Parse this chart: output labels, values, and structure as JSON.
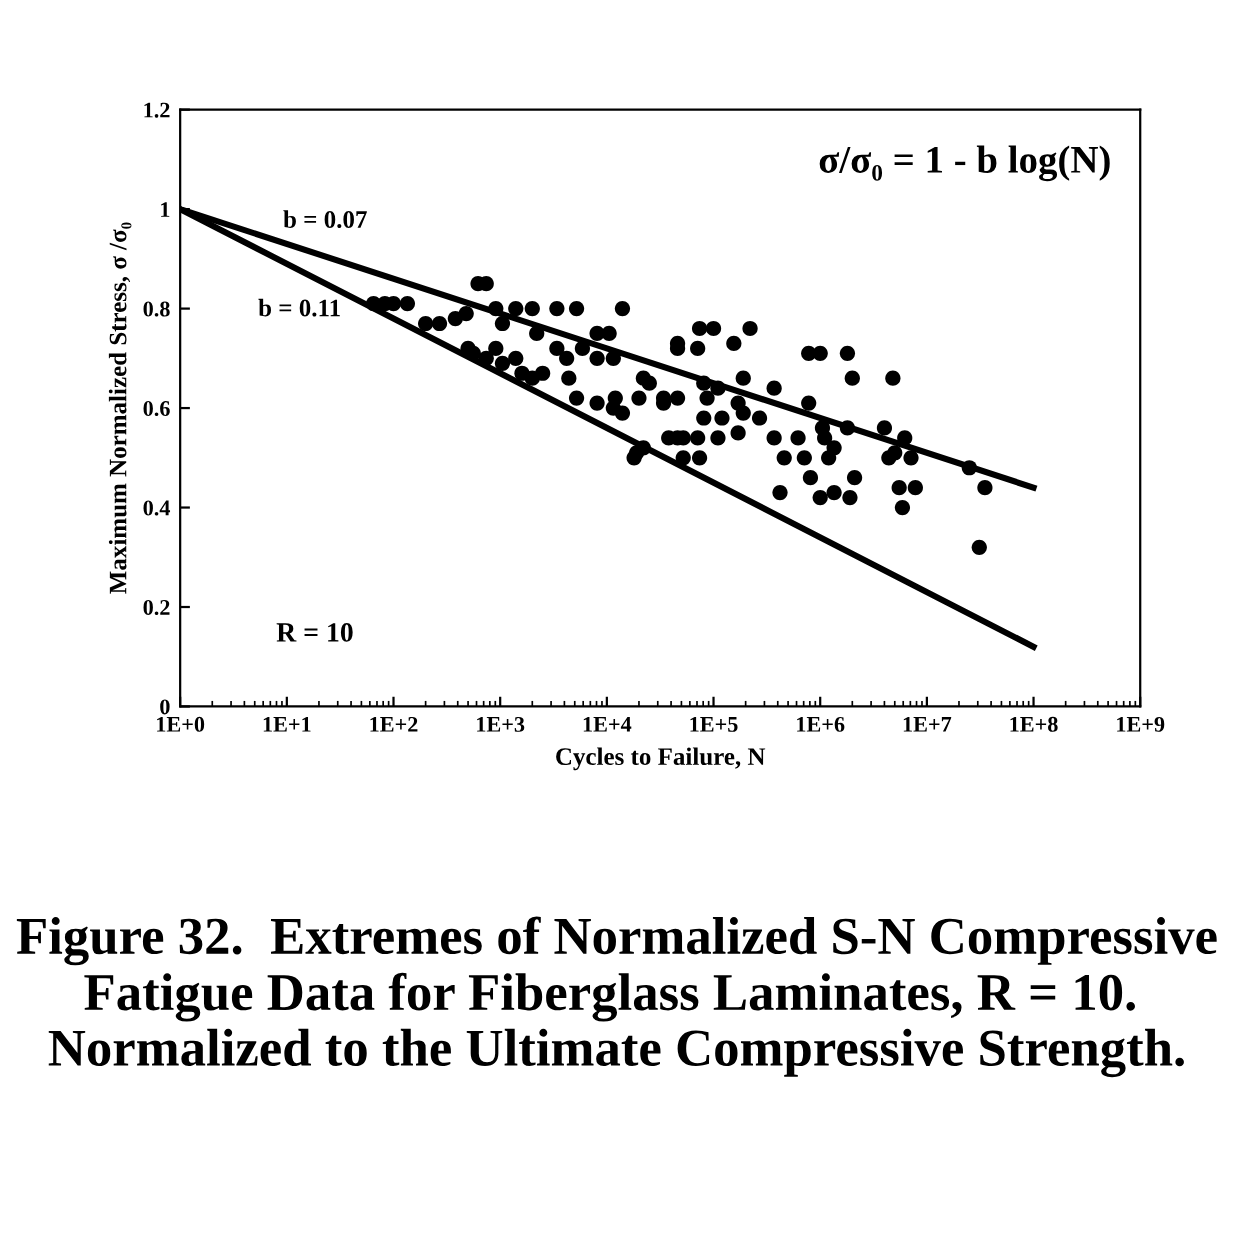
{
  "chart_data": {
    "type": "scatter",
    "xlabel": "Cycles to Failure, N",
    "ylabel": "Maximum Normalized Stress, σ /σ₀",
    "log": "x",
    "xlim": [
      1,
      1000000000
    ],
    "xticks": [
      {
        "value": 1,
        "label": "1E+0"
      },
      {
        "value": 10,
        "label": "1E+1"
      },
      {
        "value": 100,
        "label": "1E+2"
      },
      {
        "value": 1000,
        "label": "1E+3"
      },
      {
        "value": 10000,
        "label": "1E+4"
      },
      {
        "value": 100000,
        "label": "1E+5"
      },
      {
        "value": 1000000,
        "label": "1E+6"
      },
      {
        "value": 10000000,
        "label": "1E+7"
      },
      {
        "value": 100000000,
        "label": "1E+8"
      },
      {
        "value": 1000000000,
        "label": "1E+9"
      }
    ],
    "ylim": [
      0,
      1.2
    ],
    "yticks": [
      0,
      0.2,
      0.4,
      0.6,
      0.8,
      1,
      1.2
    ],
    "grid": false,
    "legend": false,
    "series": [
      {
        "color": "#000000",
        "marker": "circle",
        "x": [
          65,
          83,
          100,
          135,
          200,
          270,
          380,
          480,
          620,
          740,
          910,
          1050,
          1400,
          2000,
          3400,
          5200,
          14000,
          500,
          560,
          740,
          910,
          1050,
          1400,
          1600,
          2000,
          2500,
          2200,
          3400,
          4200,
          4400,
          5900,
          8100,
          8100,
          11500,
          10500,
          5200,
          8100,
          11500,
          14000,
          20000,
          25000,
          34000,
          46000,
          46000,
          18000,
          22000,
          38000,
          52000,
          74000,
          100000,
          220000,
          46000,
          155000,
          71000,
          780000,
          1000000,
          1800000,
          2000000,
          4800000,
          22000,
          81000,
          110000,
          190000,
          87000,
          170000,
          370000,
          780000,
          12000,
          34000,
          81000,
          120000,
          190000,
          270000,
          46000,
          71000,
          110000,
          170000,
          370000,
          620000,
          1100000,
          1350000,
          460000,
          710000,
          1200000,
          1800000,
          4000000,
          6200000,
          4400000,
          5000000,
          7100000,
          19000,
          52000,
          74000,
          420000,
          810000,
          1000000,
          1350000,
          1900000,
          2100000,
          5500000,
          7800000,
          5900000,
          25000000,
          35000000,
          31000000,
          1050000
        ],
        "values": [
          0.81,
          0.81,
          0.81,
          0.81,
          0.77,
          0.77,
          0.78,
          0.79,
          0.85,
          0.85,
          0.8,
          0.77,
          0.8,
          0.8,
          0.8,
          0.8,
          0.8,
          0.72,
          0.71,
          0.7,
          0.72,
          0.69,
          0.7,
          0.67,
          0.66,
          0.67,
          0.75,
          0.72,
          0.7,
          0.66,
          0.72,
          0.75,
          0.7,
          0.7,
          0.75,
          0.62,
          0.61,
          0.6,
          0.59,
          0.62,
          0.65,
          0.62,
          0.62,
          0.73,
          0.5,
          0.52,
          0.54,
          0.54,
          0.76,
          0.76,
          0.76,
          0.72,
          0.73,
          0.72,
          0.71,
          0.71,
          0.71,
          0.66,
          0.66,
          0.66,
          0.65,
          0.64,
          0.66,
          0.62,
          0.61,
          0.64,
          0.61,
          0.62,
          0.61,
          0.58,
          0.58,
          0.59,
          0.58,
          0.54,
          0.54,
          0.54,
          0.55,
          0.54,
          0.54,
          0.54,
          0.52,
          0.5,
          0.5,
          0.5,
          0.56,
          0.56,
          0.54,
          0.5,
          0.51,
          0.5,
          0.51,
          0.5,
          0.5,
          0.43,
          0.46,
          0.42,
          0.43,
          0.42,
          0.46,
          0.44,
          0.44,
          0.4,
          0.48,
          0.44,
          0.32,
          0.56
        ]
      },
      {
        "type": "line",
        "name": "b = 0.07",
        "color": "#000000",
        "marker": "none",
        "x": [
          1,
          100000000
        ],
        "values": [
          1,
          0.44
        ]
      },
      {
        "type": "line",
        "name": "b = 0.11",
        "color": "#000000",
        "marker": "none",
        "x": [
          1,
          100000000
        ],
        "values": [
          1,
          0.12
        ]
      }
    ],
    "annotations": [
      "σ/σ₀ = 1 - b log(N)",
      "R = 10",
      "Figure 32.  Extremes of Normalized S-N Compressive Fatigue Data for Fiberglass Laminates, R = 10.  Normalized to the Ultimate Compressive Strength."
    ]
  }
}
